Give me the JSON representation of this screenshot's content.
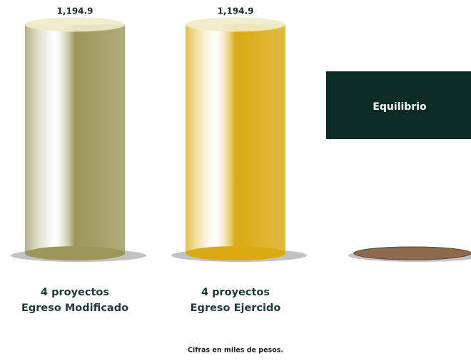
{
  "chart_data": {
    "type": "bar",
    "style": "cylinder",
    "categories": [
      [
        "4 proyectos",
        "Egreso Modificado"
      ],
      [
        "4 proyectos",
        "Egreso Ejercido"
      ],
      null
    ],
    "values": [
      1194.9,
      1194.9,
      0
    ],
    "value_labels": [
      "1,194.9",
      "1,194.9",
      null
    ],
    "colors": [
      "#9c965a",
      "#d9aa12",
      "#8c6a4d"
    ],
    "ylim": [
      0,
      1200
    ],
    "annotation": "Equilibrio",
    "note": "Cifras en miles de pesos."
  }
}
